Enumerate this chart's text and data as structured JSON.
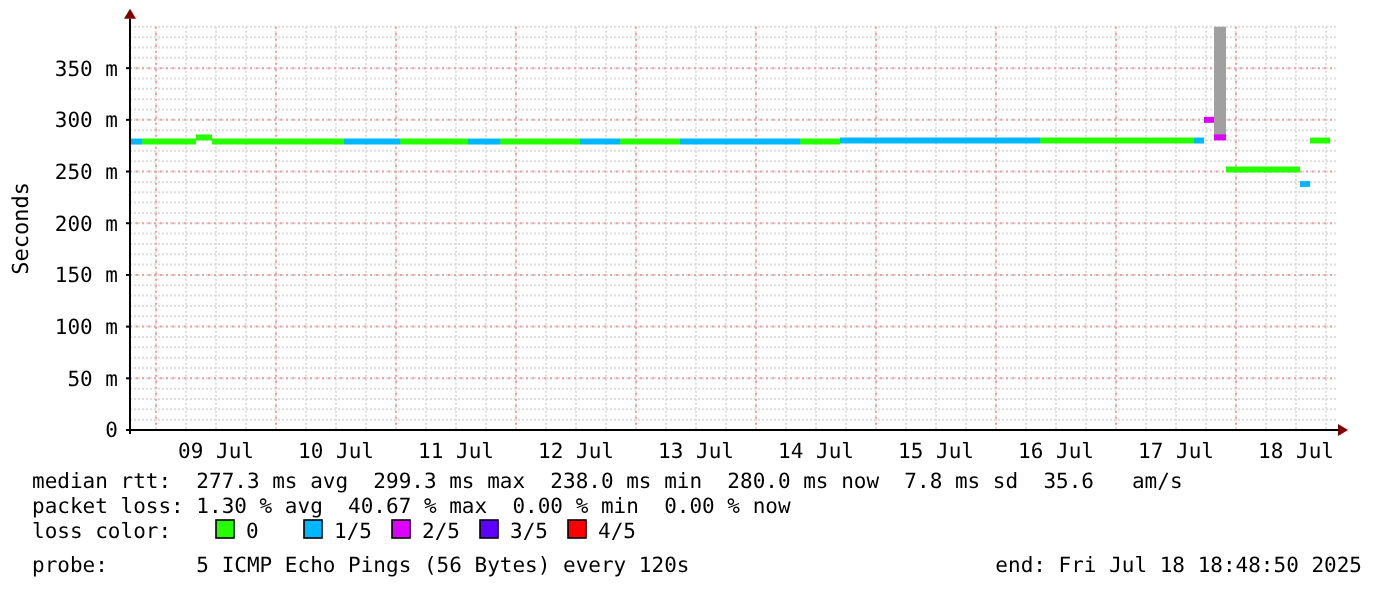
{
  "chart_data": {
    "type": "step",
    "ylabel": "Seconds",
    "legend_title": "loss color:",
    "legend": "bottom",
    "grid": true,
    "xlim": [
      "2025-07-08T18:48",
      "2025-07-18T18:48"
    ],
    "xticks": [
      {
        "value": "2025-07-09T12:00",
        "label": "09 Jul"
      },
      {
        "value": "2025-07-10T12:00",
        "label": "10 Jul"
      },
      {
        "value": "2025-07-11T12:00",
        "label": "11 Jul"
      },
      {
        "value": "2025-07-12T12:00",
        "label": "12 Jul"
      },
      {
        "value": "2025-07-13T12:00",
        "label": "13 Jul"
      },
      {
        "value": "2025-07-14T12:00",
        "label": "14 Jul"
      },
      {
        "value": "2025-07-15T12:00",
        "label": "15 Jul"
      },
      {
        "value": "2025-07-16T12:00",
        "label": "16 Jul"
      },
      {
        "value": "2025-07-17T12:00",
        "label": "17 Jul"
      },
      {
        "value": "2025-07-18T12:00",
        "label": "18 Jul"
      }
    ],
    "ylim": [
      0,
      390
    ],
    "yticks": [
      0,
      {
        "value": 50,
        "label": "50 m"
      },
      {
        "value": 100,
        "label": "100 m"
      },
      {
        "value": 150,
        "label": "150 m"
      },
      {
        "value": 200,
        "label": "200 m"
      },
      {
        "value": 250,
        "label": "250 m"
      },
      {
        "value": 300,
        "label": "300 m"
      },
      {
        "value": 350,
        "label": "350 m"
      }
    ],
    "series": [
      {
        "name": "0",
        "color": "#26ff00",
        "x": [
          "2025-07-08T21:12",
          "2025-07-09T08:00"
        ],
        "values": [
          279,
          279
        ]
      },
      {
        "name": "1/5",
        "color": "#00b8ff",
        "x": [
          "2025-07-08T18:48",
          "2025-07-08T21:12"
        ],
        "values": [
          279,
          279
        ]
      },
      {
        "name": "2/5",
        "color": "#dd00ff",
        "x": [
          "2025-07-17T17:36",
          "2025-07-17T19:36"
        ],
        "values": [
          300,
          300
        ]
      },
      {
        "name": "3/5",
        "color": "#5e00ff"
      },
      {
        "name": "4/5",
        "color": "#ff0000"
      },
      {
        "color": "#26ff00",
        "x": [
          "2025-07-09T08:00",
          "2025-07-09T11:12"
        ],
        "values": [
          283,
          283
        ]
      },
      {
        "color": "#26ff00",
        "x": [
          "2025-07-09T11:12",
          "2025-07-10T13:36"
        ],
        "values": [
          279,
          279
        ]
      },
      {
        "color": "#00b8ff",
        "x": [
          "2025-07-10T13:36",
          "2025-07-11T00:48"
        ],
        "values": [
          279,
          279
        ]
      },
      {
        "color": "#26ff00",
        "x": [
          "2025-07-11T00:48",
          "2025-07-11T14:24"
        ],
        "values": [
          279,
          279
        ]
      },
      {
        "color": "#00b8ff",
        "x": [
          "2025-07-11T14:24",
          "2025-07-11T20:48"
        ],
        "values": [
          279,
          279
        ]
      },
      {
        "color": "#26ff00",
        "x": [
          "2025-07-11T20:48",
          "2025-07-12T12:48"
        ],
        "values": [
          279,
          279
        ]
      },
      {
        "color": "#00b8ff",
        "x": [
          "2025-07-12T12:48",
          "2025-07-12T20:48"
        ],
        "values": [
          279,
          279
        ]
      },
      {
        "color": "#26ff00",
        "x": [
          "2025-07-12T20:48",
          "2025-07-13T08:48"
        ],
        "values": [
          279,
          279
        ]
      },
      {
        "color": "#00b8ff",
        "x": [
          "2025-07-13T08:48",
          "2025-07-14T08:48"
        ],
        "values": [
          279,
          279
        ]
      },
      {
        "color": "#26ff00",
        "x": [
          "2025-07-14T08:48",
          "2025-07-14T16:48"
        ],
        "values": [
          279,
          279
        ]
      },
      {
        "color": "#00b8ff",
        "x": [
          "2025-07-14T16:48",
          "2025-07-16T08:48"
        ],
        "values": [
          280,
          280
        ]
      },
      {
        "color": "#26ff00",
        "x": [
          "2025-07-16T08:48",
          "2025-07-17T15:36"
        ],
        "values": [
          280,
          280
        ]
      },
      {
        "color": "#00b8ff",
        "x": [
          "2025-07-17T15:36",
          "2025-07-17T17:36"
        ],
        "values": [
          280,
          280
        ]
      },
      {
        "color": "#dd00ff",
        "x": [
          "2025-07-17T19:36",
          "2025-07-17T22:00"
        ],
        "values": [
          283,
          283
        ],
        "lower": [
          283,
          283
        ],
        "upper": [
          390,
          390
        ]
      },
      {
        "color": "#26ff00",
        "x": [
          "2025-07-17T22:00",
          "2025-07-18T12:48"
        ],
        "values": [
          252,
          252
        ]
      },
      {
        "color": "#00b8ff",
        "x": [
          "2025-07-18T12:48",
          "2025-07-18T14:48"
        ],
        "values": [
          238,
          238
        ]
      },
      {
        "color": "#26ff00",
        "x": [
          "2025-07-18T14:48",
          "2025-07-18T18:48"
        ],
        "values": [
          280,
          280
        ]
      }
    ],
    "annotations": [
      "median rtt:  277.3 ms avg  299.3 ms max  238.0 ms min  280.0 ms now  7.8 ms sd  35.6   am/s",
      "packet loss: 1.30 % avg  40.67 % max  0.00 % min  0.00 % now",
      "probe:       5 ICMP Echo Pings (56 Bytes) every 120s",
      "end: Fri Jul 18 18:48:50 2025"
    ]
  }
}
